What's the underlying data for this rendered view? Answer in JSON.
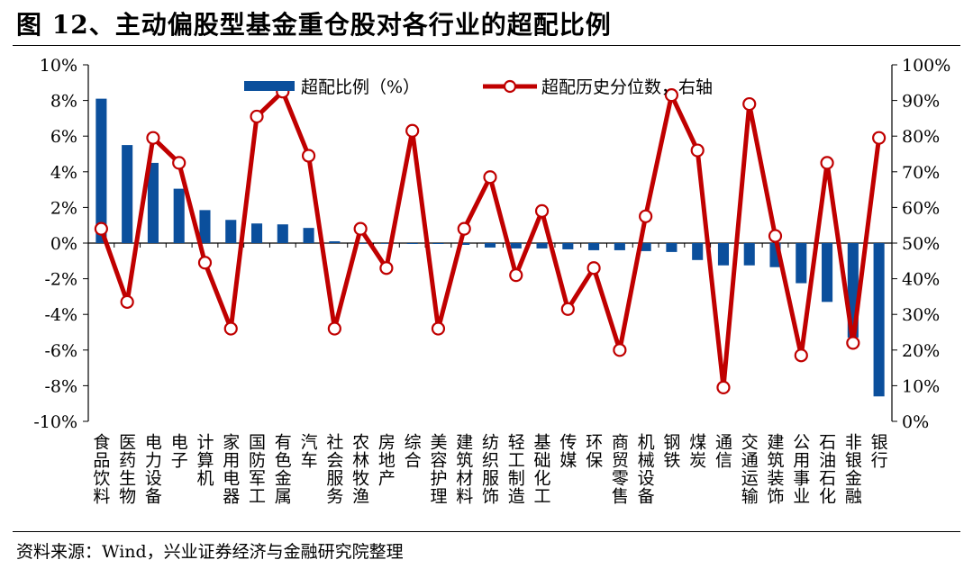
{
  "title": "图 12、主动偏股型基金重仓股对各行业的超配比例",
  "source": "资料来源：Wind，兴业证券经济与金融研究院整理",
  "chart_data": {
    "type": "bar+line",
    "categories": [
      "食品饮料",
      "医药生物",
      "电力设备",
      "电子",
      "计算机",
      "家用电器",
      "国防军工",
      "有色金属",
      "汽车",
      "社会服务",
      "农林牧渔",
      "房地产",
      "综合",
      "美容护理",
      "建筑材料",
      "纺织服饰",
      "轻工制造",
      "基础化工",
      "传媒",
      "环保",
      "商贸零售",
      "机械设备",
      "钢铁",
      "煤炭",
      "通信",
      "交通运输",
      "建筑装饰",
      "公用事业",
      "石油石化",
      "非银金融",
      "银行"
    ],
    "series": [
      {
        "name": "超配比例（%）",
        "axis": "left",
        "kind": "bar",
        "color": "#0b4f9c",
        "values": [
          8.1,
          5.5,
          4.5,
          3.05,
          1.85,
          1.3,
          1.1,
          1.05,
          0.85,
          0.1,
          0.0,
          0.0,
          -0.05,
          -0.05,
          -0.1,
          -0.25,
          -0.3,
          -0.3,
          -0.35,
          -0.4,
          -0.4,
          -0.45,
          -0.5,
          -0.95,
          -1.25,
          -1.25,
          -1.35,
          -2.25,
          -3.3,
          -5.3,
          -8.6
        ]
      },
      {
        "name": "超配历史分位数，右轴",
        "axis": "right",
        "kind": "line",
        "color": "#c00000",
        "values": [
          54,
          33.5,
          79.5,
          72.5,
          44.5,
          26,
          85.5,
          92.5,
          74.5,
          26,
          54,
          43,
          81.5,
          26,
          54,
          68.5,
          41,
          59,
          31.5,
          43,
          20,
          57.5,
          91.5,
          76,
          9.5,
          89,
          52,
          18.5,
          72.5,
          22,
          79.5
        ]
      }
    ],
    "y_left": {
      "min": -10,
      "max": 10,
      "step": 2,
      "tick_labels": [
        "-10%",
        "-8%",
        "-6%",
        "-4%",
        "-2%",
        "0%",
        "2%",
        "4%",
        "6%",
        "8%",
        "10%"
      ]
    },
    "y_right": {
      "min": 0,
      "max": 100,
      "step": 10,
      "tick_labels": [
        "0%",
        "10%",
        "20%",
        "30%",
        "40%",
        "50%",
        "60%",
        "70%",
        "80%",
        "90%",
        "100%"
      ]
    },
    "legend": {
      "placement": "top-center",
      "bar_label": "超配比例（%）",
      "line_label": "超配历史分位数，右轴"
    },
    "grid": false
  }
}
